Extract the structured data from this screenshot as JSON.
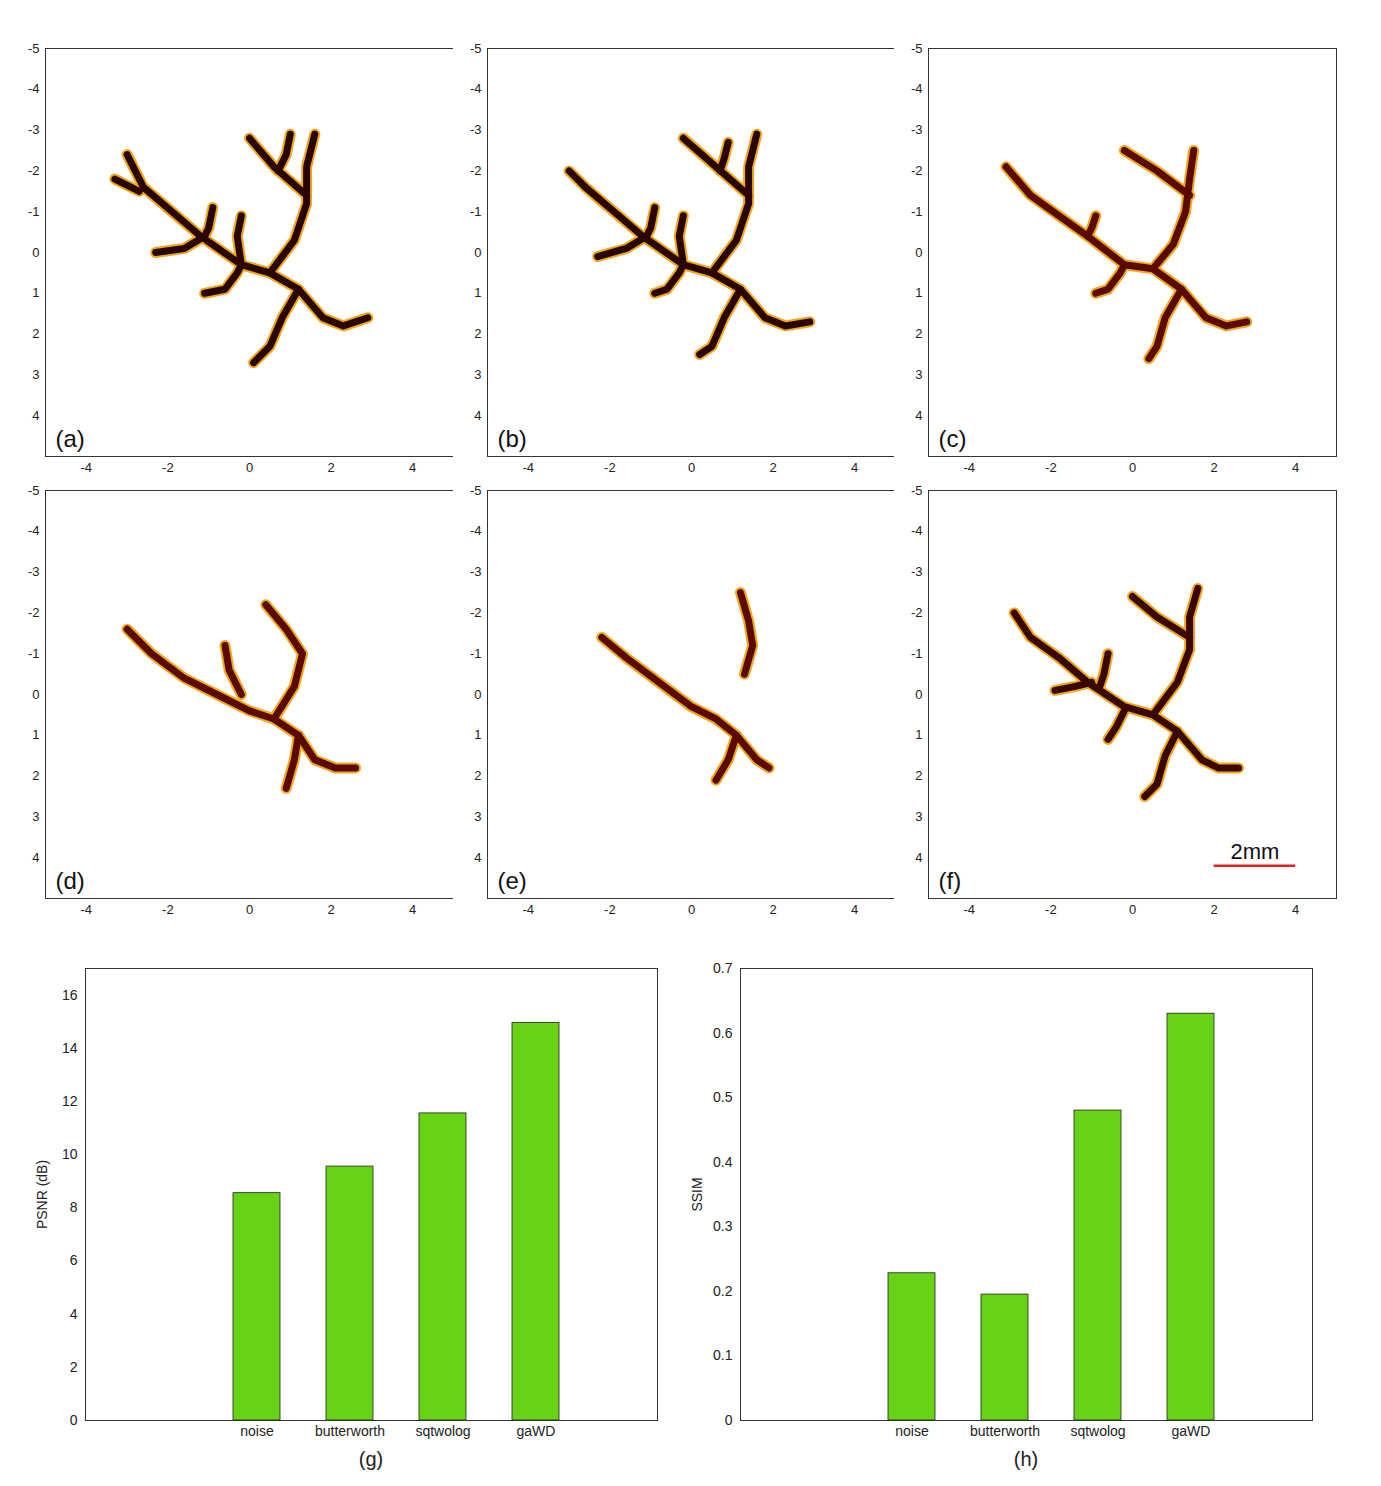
{
  "chart_data": [
    {
      "type": "image",
      "label": "(a)",
      "xlim": [
        -5,
        5
      ],
      "ylim": [
        -5,
        5
      ],
      "xticks": [
        -4,
        -2,
        0,
        2,
        4
      ],
      "yticks": [
        -5,
        -4,
        -3,
        -2,
        -1,
        0,
        1,
        2,
        3,
        4
      ],
      "color": "#2a0500",
      "vessels": [
        [
          [
            -3.0,
            -2.4
          ],
          [
            -2.6,
            -1.6
          ],
          [
            -1.9,
            -1.0
          ],
          [
            -1.2,
            -0.4
          ],
          [
            -0.2,
            0.3
          ],
          [
            0.5,
            0.5
          ],
          [
            1.2,
            0.9
          ],
          [
            1.8,
            1.6
          ],
          [
            2.3,
            1.8
          ],
          [
            2.9,
            1.6
          ]
        ],
        [
          [
            1.6,
            -2.9
          ],
          [
            1.4,
            -2.1
          ],
          [
            1.4,
            -1.2
          ],
          [
            1.1,
            -0.3
          ],
          [
            0.5,
            0.5
          ]
        ],
        [
          [
            0.0,
            -2.8
          ],
          [
            0.6,
            -2.1
          ],
          [
            1.4,
            -1.4
          ]
        ],
        [
          [
            1.0,
            -2.9
          ],
          [
            0.9,
            -2.4
          ],
          [
            0.7,
            -2.0
          ]
        ],
        [
          [
            1.2,
            0.9
          ],
          [
            0.8,
            1.6
          ],
          [
            0.5,
            2.3
          ],
          [
            0.1,
            2.7
          ]
        ],
        [
          [
            -3.3,
            -1.8
          ],
          [
            -2.7,
            -1.5
          ]
        ],
        [
          [
            -2.3,
            0.0
          ],
          [
            -1.6,
            -0.1
          ],
          [
            -1.1,
            -0.4
          ]
        ],
        [
          [
            -0.9,
            -1.1
          ],
          [
            -1.0,
            -0.6
          ],
          [
            -1.1,
            -0.4
          ]
        ],
        [
          [
            -0.2,
            -0.9
          ],
          [
            -0.3,
            -0.4
          ],
          [
            -0.2,
            0.3
          ]
        ],
        [
          [
            -1.1,
            1.0
          ],
          [
            -0.6,
            0.9
          ],
          [
            -0.3,
            0.5
          ],
          [
            -0.2,
            0.3
          ]
        ]
      ]
    },
    {
      "type": "image",
      "label": "(b)",
      "xlim": [
        -5,
        5
      ],
      "ylim": [
        -5,
        5
      ],
      "xticks": [
        -4,
        -2,
        0,
        2,
        4
      ],
      "yticks": [
        -5,
        -4,
        -3,
        -2,
        -1,
        0,
        1,
        2,
        3,
        4
      ],
      "color": "#2a0500",
      "vessels": [
        [
          [
            -3.0,
            -2.0
          ],
          [
            -2.6,
            -1.6
          ],
          [
            -1.9,
            -1.0
          ],
          [
            -1.2,
            -0.4
          ],
          [
            -0.2,
            0.3
          ],
          [
            0.5,
            0.5
          ],
          [
            1.2,
            0.9
          ],
          [
            1.8,
            1.6
          ],
          [
            2.3,
            1.8
          ],
          [
            2.9,
            1.7
          ]
        ],
        [
          [
            1.6,
            -2.9
          ],
          [
            1.4,
            -2.1
          ],
          [
            1.4,
            -1.2
          ],
          [
            1.1,
            -0.3
          ],
          [
            0.5,
            0.5
          ]
        ],
        [
          [
            -0.2,
            -2.8
          ],
          [
            0.6,
            -2.1
          ],
          [
            1.4,
            -1.4
          ]
        ],
        [
          [
            0.9,
            -2.7
          ],
          [
            0.8,
            -2.3
          ],
          [
            0.7,
            -2.0
          ]
        ],
        [
          [
            1.2,
            0.9
          ],
          [
            0.8,
            1.6
          ],
          [
            0.5,
            2.3
          ],
          [
            0.2,
            2.5
          ]
        ],
        [
          [
            -2.3,
            0.1
          ],
          [
            -1.6,
            -0.1
          ],
          [
            -1.1,
            -0.4
          ]
        ],
        [
          [
            -0.9,
            -1.1
          ],
          [
            -1.0,
            -0.6
          ],
          [
            -1.1,
            -0.4
          ]
        ],
        [
          [
            -0.2,
            -0.9
          ],
          [
            -0.3,
            -0.4
          ],
          [
            -0.2,
            0.3
          ]
        ],
        [
          [
            -0.9,
            1.0
          ],
          [
            -0.6,
            0.9
          ],
          [
            -0.3,
            0.5
          ],
          [
            -0.2,
            0.3
          ]
        ]
      ]
    },
    {
      "type": "image",
      "label": "(c)",
      "xlim": [
        -5,
        5
      ],
      "ylim": [
        -5,
        5
      ],
      "xticks": [
        -4,
        -2,
        0,
        2,
        4
      ],
      "yticks": [
        -5,
        -4,
        -3,
        -2,
        -1,
        0,
        1,
        2,
        3,
        4
      ],
      "color": "#5a0a00",
      "vessels": [
        [
          [
            -3.1,
            -2.1
          ],
          [
            -2.5,
            -1.4
          ],
          [
            -1.8,
            -0.9
          ],
          [
            -1.1,
            -0.4
          ],
          [
            -0.2,
            0.3
          ],
          [
            0.5,
            0.4
          ],
          [
            1.2,
            0.9
          ],
          [
            1.8,
            1.6
          ],
          [
            2.3,
            1.8
          ],
          [
            2.8,
            1.7
          ]
        ],
        [
          [
            1.5,
            -2.5
          ],
          [
            1.4,
            -1.8
          ],
          [
            1.3,
            -1.0
          ],
          [
            1.0,
            -0.2
          ],
          [
            0.5,
            0.4
          ]
        ],
        [
          [
            -0.2,
            -2.5
          ],
          [
            0.6,
            -2.0
          ],
          [
            1.4,
            -1.4
          ]
        ],
        [
          [
            1.2,
            0.9
          ],
          [
            0.8,
            1.6
          ],
          [
            0.6,
            2.3
          ],
          [
            0.4,
            2.6
          ]
        ],
        [
          [
            -0.9,
            -0.9
          ],
          [
            -1.0,
            -0.6
          ],
          [
            -1.1,
            -0.4
          ]
        ],
        [
          [
            -0.9,
            1.0
          ],
          [
            -0.6,
            0.9
          ],
          [
            -0.3,
            0.5
          ],
          [
            -0.2,
            0.3
          ]
        ]
      ]
    },
    {
      "type": "image",
      "label": "(d)",
      "xlim": [
        -5,
        5
      ],
      "ylim": [
        -5,
        5
      ],
      "xticks": [
        -4,
        -2,
        0,
        2,
        4
      ],
      "yticks": [
        -5,
        -4,
        -3,
        -2,
        -1,
        0,
        1,
        2,
        3,
        4
      ],
      "color": "#5a0a00",
      "vessels": [
        [
          [
            -3.0,
            -1.6
          ],
          [
            -2.4,
            -1.0
          ],
          [
            -1.6,
            -0.4
          ],
          [
            -0.8,
            0.0
          ],
          [
            0.0,
            0.4
          ],
          [
            0.6,
            0.6
          ],
          [
            1.2,
            1.0
          ],
          [
            1.6,
            1.6
          ],
          [
            2.1,
            1.8
          ],
          [
            2.6,
            1.8
          ]
        ],
        [
          [
            0.4,
            -2.2
          ],
          [
            0.9,
            -1.6
          ],
          [
            1.3,
            -1.0
          ],
          [
            1.1,
            -0.2
          ],
          [
            0.6,
            0.6
          ]
        ],
        [
          [
            1.2,
            1.0
          ],
          [
            1.1,
            1.6
          ],
          [
            0.9,
            2.3
          ]
        ],
        [
          [
            -0.6,
            -1.2
          ],
          [
            -0.5,
            -0.6
          ],
          [
            -0.2,
            0.0
          ]
        ]
      ]
    },
    {
      "type": "image",
      "label": "(e)",
      "xlim": [
        -5,
        5
      ],
      "ylim": [
        -5,
        5
      ],
      "xticks": [
        -4,
        -2,
        0,
        2,
        4
      ],
      "yticks": [
        -5,
        -4,
        -3,
        -2,
        -1,
        0,
        1,
        2,
        3,
        4
      ],
      "color": "#5a0a00",
      "vessels": [
        [
          [
            -2.2,
            -1.4
          ],
          [
            -1.6,
            -0.9
          ],
          [
            -0.8,
            -0.3
          ],
          [
            0.0,
            0.3
          ],
          [
            0.6,
            0.6
          ],
          [
            1.1,
            1.0
          ],
          [
            1.6,
            1.6
          ],
          [
            1.9,
            1.8
          ]
        ],
        [
          [
            1.2,
            -2.5
          ],
          [
            1.4,
            -1.8
          ],
          [
            1.5,
            -1.2
          ],
          [
            1.3,
            -0.5
          ]
        ],
        [
          [
            1.1,
            1.0
          ],
          [
            0.9,
            1.6
          ],
          [
            0.6,
            2.1
          ]
        ]
      ]
    },
    {
      "type": "image",
      "label": "(f)",
      "xlim": [
        -5,
        5
      ],
      "ylim": [
        -5,
        5
      ],
      "xticks": [
        -4,
        -2,
        0,
        2,
        4
      ],
      "yticks": [
        -5,
        -4,
        -3,
        -2,
        -1,
        0,
        1,
        2,
        3,
        4
      ],
      "color": "#3a0600",
      "scale_bar": {
        "label": "2mm",
        "length": 2,
        "color": "#e02020"
      },
      "vessels": [
        [
          [
            -2.9,
            -2.0
          ],
          [
            -2.5,
            -1.4
          ],
          [
            -1.8,
            -0.9
          ],
          [
            -1.1,
            -0.3
          ],
          [
            -0.2,
            0.3
          ],
          [
            0.5,
            0.5
          ],
          [
            1.1,
            0.9
          ],
          [
            1.7,
            1.6
          ],
          [
            2.1,
            1.8
          ],
          [
            2.6,
            1.8
          ]
        ],
        [
          [
            1.6,
            -2.6
          ],
          [
            1.4,
            -1.9
          ],
          [
            1.4,
            -1.1
          ],
          [
            1.1,
            -0.3
          ],
          [
            0.5,
            0.5
          ]
        ],
        [
          [
            0.0,
            -2.4
          ],
          [
            0.6,
            -1.9
          ],
          [
            1.4,
            -1.4
          ]
        ],
        [
          [
            1.1,
            0.9
          ],
          [
            0.8,
            1.5
          ],
          [
            0.6,
            2.2
          ],
          [
            0.3,
            2.5
          ]
        ],
        [
          [
            -1.9,
            -0.1
          ],
          [
            -1.4,
            -0.2
          ],
          [
            -1.0,
            -0.3
          ]
        ],
        [
          [
            -0.6,
            -1.0
          ],
          [
            -0.7,
            -0.5
          ],
          [
            -0.8,
            -0.2
          ]
        ],
        [
          [
            -0.6,
            1.1
          ],
          [
            -0.4,
            0.8
          ],
          [
            -0.2,
            0.4
          ]
        ]
      ]
    },
    {
      "type": "bar",
      "label": "(g)",
      "y_label": "PSNR (dB)",
      "categories": [
        "noise",
        "butterworth",
        "sqtwolog",
        "gaWD"
      ],
      "values": [
        8.55,
        9.55,
        11.55,
        14.95
      ],
      "color": "#66d314",
      "ylim": [
        0,
        17
      ],
      "yticks": [
        0,
        2,
        4,
        6,
        8,
        10,
        12,
        14,
        16
      ]
    },
    {
      "type": "bar",
      "label": "(h)",
      "y_label": "SSIM",
      "categories": [
        "noise",
        "butterworth",
        "sqtwolog",
        "gaWD"
      ],
      "values": [
        0.228,
        0.195,
        0.48,
        0.63
      ],
      "color": "#66d314",
      "ylim": [
        0,
        0.7
      ],
      "yticks": [
        0,
        0.1,
        0.2,
        0.3,
        0.4,
        0.5,
        0.6,
        0.7
      ]
    }
  ]
}
